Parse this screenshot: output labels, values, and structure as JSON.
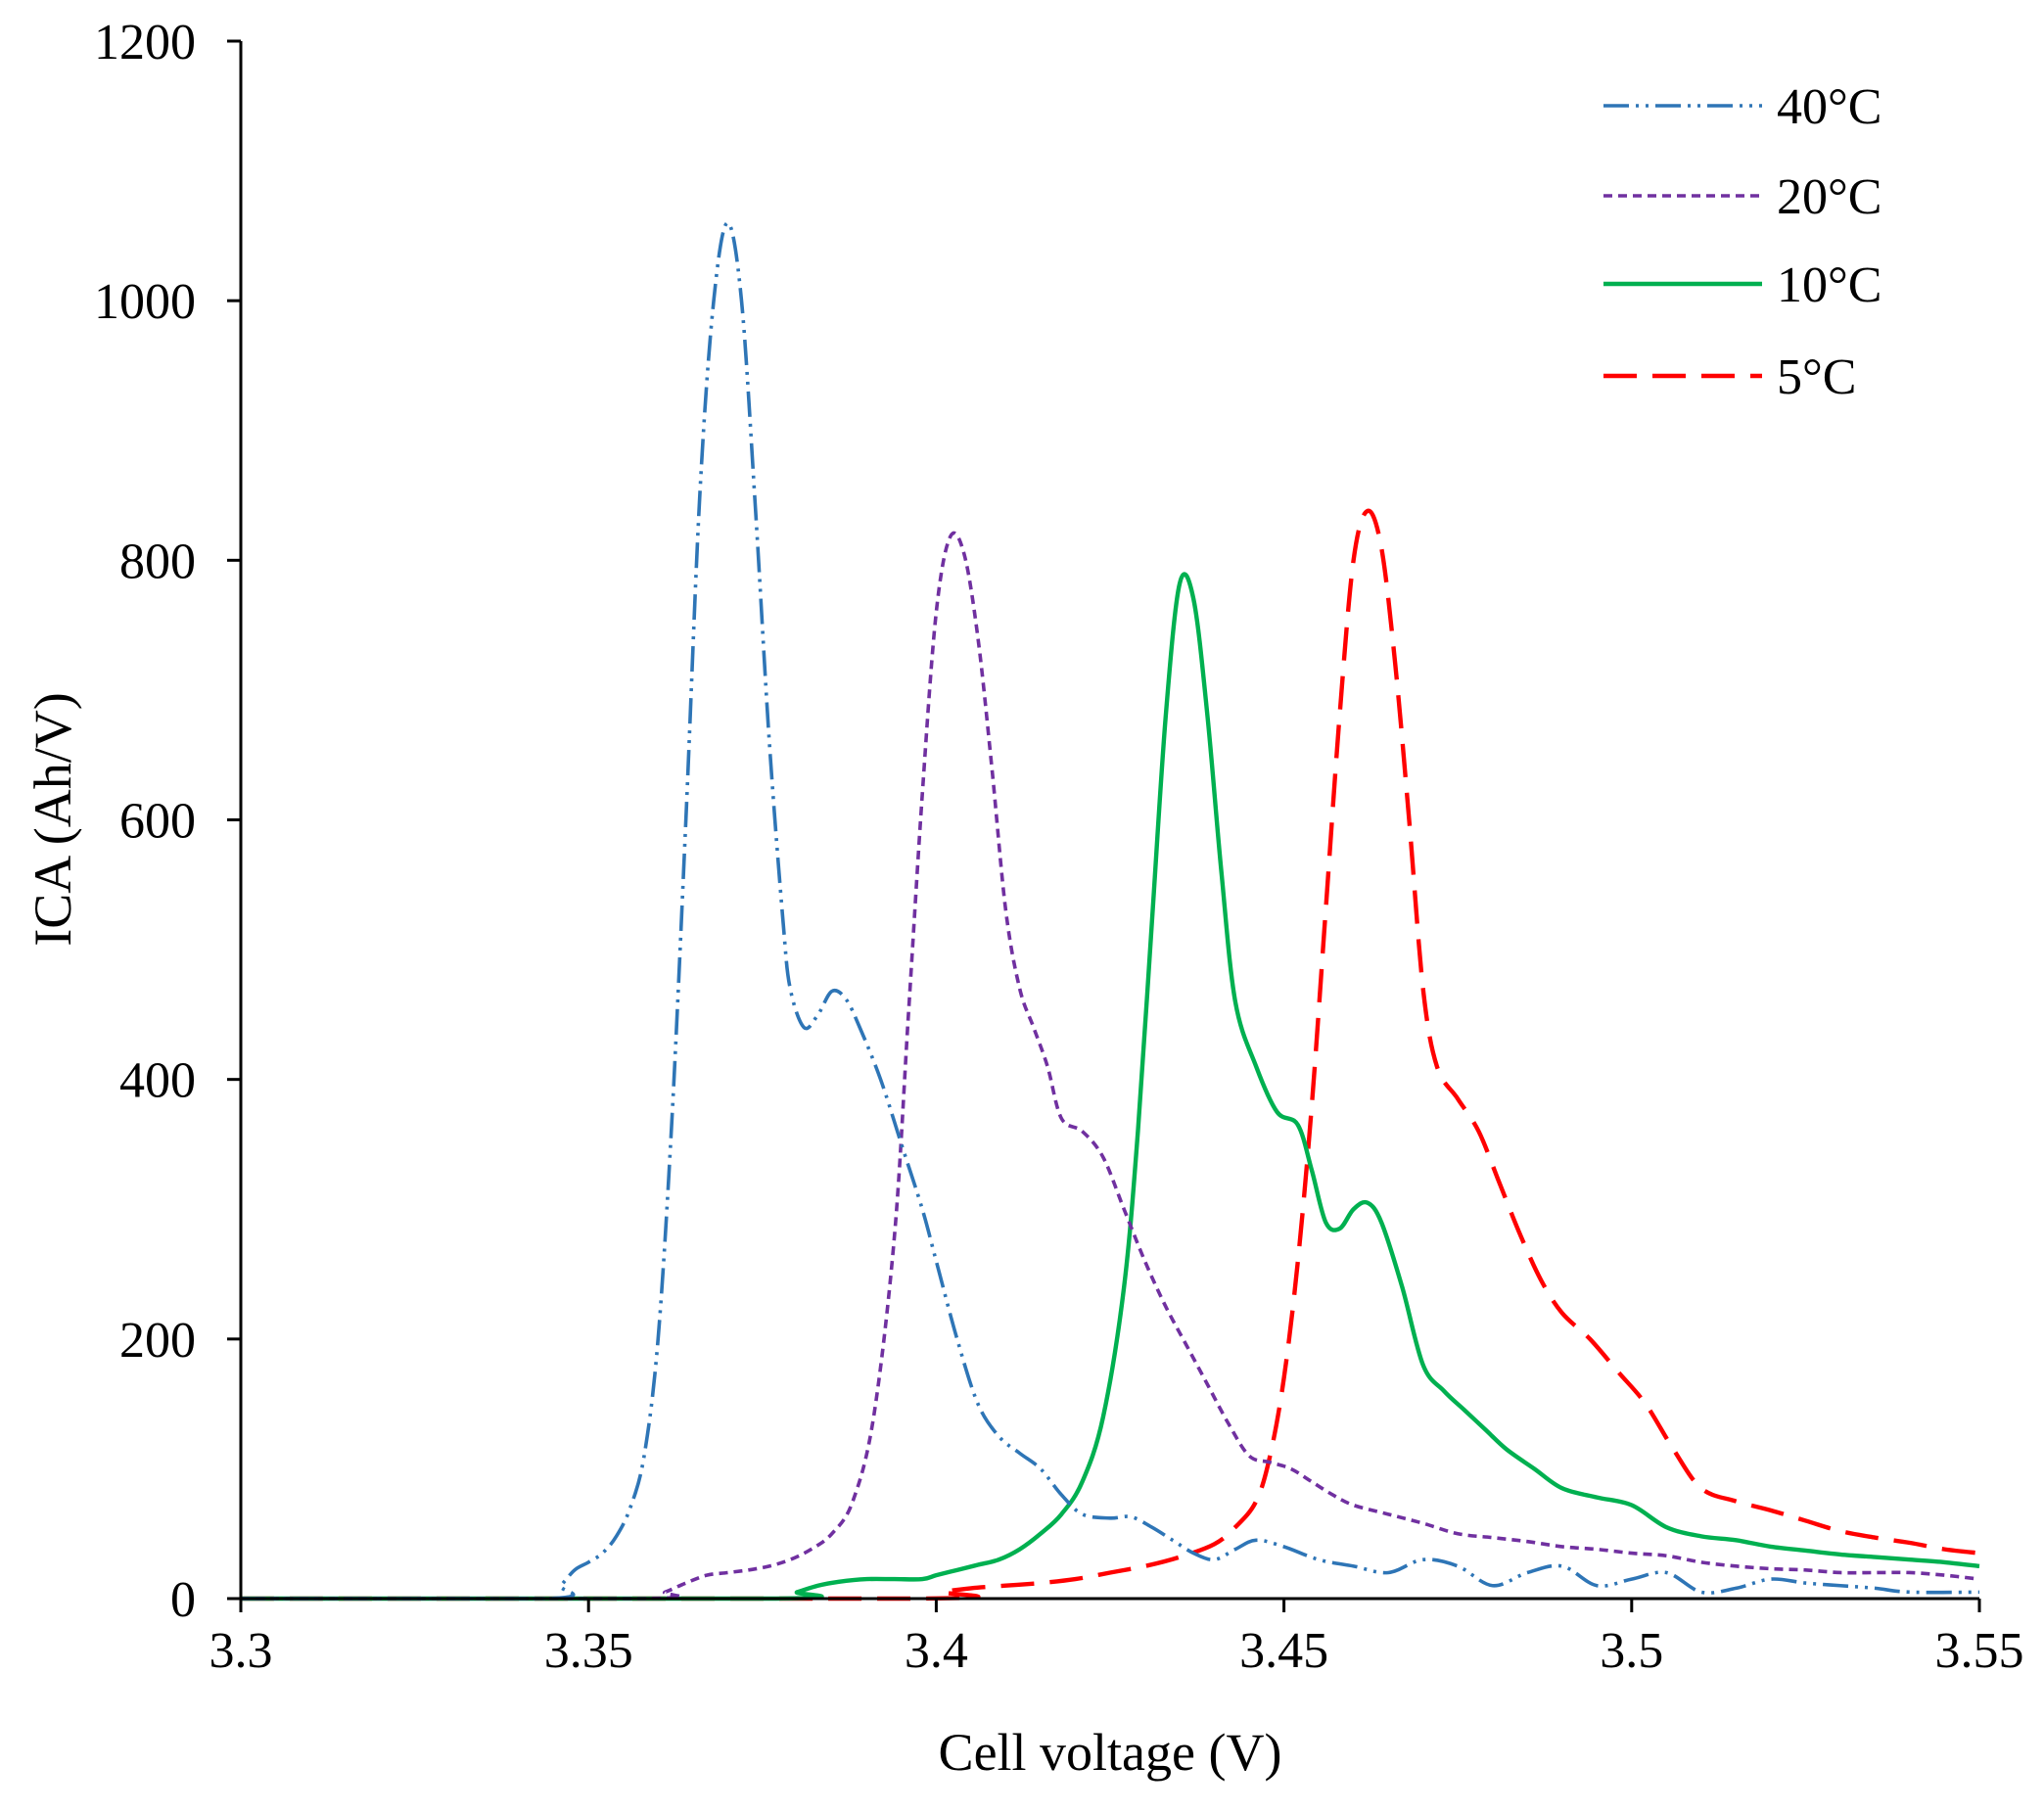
{
  "chart_data": {
    "type": "line",
    "title": "",
    "xlabel": "Cell voltage (V)",
    "ylabel": "ICA (Ah/V)",
    "xlim": [
      3.3,
      3.55
    ],
    "ylim": [
      0,
      1200
    ],
    "x_ticks": [
      3.3,
      3.35,
      3.4,
      3.45,
      3.5,
      3.55
    ],
    "x_tick_labels": [
      "3.3",
      "3.35",
      "3.4",
      "3.45",
      "3.5",
      "3.55"
    ],
    "y_ticks": [
      0,
      200,
      400,
      600,
      800,
      1000,
      1200
    ],
    "y_tick_labels": [
      "0",
      "200",
      "400",
      "600",
      "800",
      "1000",
      "1200"
    ],
    "grid": false,
    "legend_position": "top-right",
    "series": [
      {
        "name": "40°C",
        "color": "#2e75b6",
        "style": "dash-dot-dot",
        "points": [
          [
            3.3,
            0
          ],
          [
            3.344,
            0
          ],
          [
            3.346,
            10
          ],
          [
            3.348,
            22
          ],
          [
            3.35,
            28
          ],
          [
            3.352,
            35
          ],
          [
            3.354,
            48
          ],
          [
            3.356,
            70
          ],
          [
            3.358,
            110
          ],
          [
            3.36,
            200
          ],
          [
            3.362,
            370
          ],
          [
            3.364,
            600
          ],
          [
            3.366,
            850
          ],
          [
            3.368,
            1000
          ],
          [
            3.37,
            1060
          ],
          [
            3.372,
            1000
          ],
          [
            3.374,
            840
          ],
          [
            3.376,
            660
          ],
          [
            3.378,
            520
          ],
          [
            3.379,
            470
          ],
          [
            3.381,
            440
          ],
          [
            3.383,
            450
          ],
          [
            3.385,
            468
          ],
          [
            3.387,
            462
          ],
          [
            3.389,
            440
          ],
          [
            3.392,
            400
          ],
          [
            3.395,
            350
          ],
          [
            3.398,
            300
          ],
          [
            3.4,
            260
          ],
          [
            3.403,
            200
          ],
          [
            3.406,
            150
          ],
          [
            3.409,
            125
          ],
          [
            3.412,
            112
          ],
          [
            3.415,
            100
          ],
          [
            3.418,
            80
          ],
          [
            3.421,
            65
          ],
          [
            3.425,
            62
          ],
          [
            3.428,
            63
          ],
          [
            3.431,
            55
          ],
          [
            3.434,
            45
          ],
          [
            3.437,
            35
          ],
          [
            3.44,
            30
          ],
          [
            3.443,
            38
          ],
          [
            3.446,
            45
          ],
          [
            3.45,
            40
          ],
          [
            3.455,
            30
          ],
          [
            3.46,
            25
          ],
          [
            3.465,
            20
          ],
          [
            3.47,
            30
          ],
          [
            3.475,
            25
          ],
          [
            3.48,
            10
          ],
          [
            3.485,
            20
          ],
          [
            3.49,
            25
          ],
          [
            3.495,
            10
          ],
          [
            3.5,
            15
          ],
          [
            3.505,
            20
          ],
          [
            3.51,
            5
          ],
          [
            3.515,
            8
          ],
          [
            3.52,
            15
          ],
          [
            3.525,
            12
          ],
          [
            3.53,
            10
          ],
          [
            3.535,
            8
          ],
          [
            3.54,
            5
          ],
          [
            3.55,
            5
          ]
        ]
      },
      {
        "name": "20°C",
        "color": "#7030a0",
        "style": "short-dash",
        "points": [
          [
            3.3,
            0
          ],
          [
            3.358,
            0
          ],
          [
            3.361,
            5
          ],
          [
            3.364,
            12
          ],
          [
            3.367,
            18
          ],
          [
            3.37,
            20
          ],
          [
            3.373,
            22
          ],
          [
            3.376,
            25
          ],
          [
            3.379,
            30
          ],
          [
            3.382,
            38
          ],
          [
            3.385,
            50
          ],
          [
            3.388,
            75
          ],
          [
            3.391,
            140
          ],
          [
            3.394,
            280
          ],
          [
            3.396,
            450
          ],
          [
            3.398,
            620
          ],
          [
            3.4,
            760
          ],
          [
            3.402,
            818
          ],
          [
            3.404,
            805
          ],
          [
            3.406,
            740
          ],
          [
            3.408,
            640
          ],
          [
            3.41,
            530
          ],
          [
            3.412,
            470
          ],
          [
            3.414,
            440
          ],
          [
            3.416,
            410
          ],
          [
            3.418,
            370
          ],
          [
            3.421,
            360
          ],
          [
            3.424,
            340
          ],
          [
            3.427,
            300
          ],
          [
            3.43,
            260
          ],
          [
            3.433,
            225
          ],
          [
            3.436,
            195
          ],
          [
            3.439,
            165
          ],
          [
            3.442,
            135
          ],
          [
            3.445,
            110
          ],
          [
            3.448,
            105
          ],
          [
            3.451,
            100
          ],
          [
            3.454,
            90
          ],
          [
            3.457,
            80
          ],
          [
            3.46,
            72
          ],
          [
            3.465,
            65
          ],
          [
            3.47,
            58
          ],
          [
            3.475,
            50
          ],
          [
            3.48,
            47
          ],
          [
            3.485,
            44
          ],
          [
            3.49,
            40
          ],
          [
            3.495,
            38
          ],
          [
            3.5,
            35
          ],
          [
            3.505,
            33
          ],
          [
            3.51,
            28
          ],
          [
            3.515,
            25
          ],
          [
            3.52,
            23
          ],
          [
            3.525,
            22
          ],
          [
            3.53,
            20
          ],
          [
            3.535,
            20
          ],
          [
            3.54,
            20
          ],
          [
            3.545,
            18
          ],
          [
            3.55,
            15
          ]
        ]
      },
      {
        "name": "10°C",
        "color": "#00b050",
        "style": "solid",
        "points": [
          [
            3.3,
            0
          ],
          [
            3.377,
            0
          ],
          [
            3.38,
            5
          ],
          [
            3.383,
            10
          ],
          [
            3.386,
            13
          ],
          [
            3.39,
            15
          ],
          [
            3.394,
            15
          ],
          [
            3.398,
            15
          ],
          [
            3.4,
            18
          ],
          [
            3.403,
            22
          ],
          [
            3.406,
            26
          ],
          [
            3.409,
            30
          ],
          [
            3.412,
            38
          ],
          [
            3.415,
            50
          ],
          [
            3.418,
            65
          ],
          [
            3.421,
            90
          ],
          [
            3.424,
            140
          ],
          [
            3.427,
            240
          ],
          [
            3.429,
            360
          ],
          [
            3.431,
            520
          ],
          [
            3.433,
            680
          ],
          [
            3.435,
            782
          ],
          [
            3.437,
            770
          ],
          [
            3.439,
            680
          ],
          [
            3.441,
            560
          ],
          [
            3.443,
            460
          ],
          [
            3.446,
            410
          ],
          [
            3.449,
            375
          ],
          [
            3.452,
            365
          ],
          [
            3.454,
            330
          ],
          [
            3.456,
            290
          ],
          [
            3.458,
            285
          ],
          [
            3.46,
            300
          ],
          [
            3.462,
            305
          ],
          [
            3.464,
            290
          ],
          [
            3.467,
            240
          ],
          [
            3.47,
            180
          ],
          [
            3.473,
            160
          ],
          [
            3.476,
            145
          ],
          [
            3.479,
            130
          ],
          [
            3.482,
            115
          ],
          [
            3.486,
            100
          ],
          [
            3.49,
            85
          ],
          [
            3.495,
            78
          ],
          [
            3.5,
            72
          ],
          [
            3.505,
            55
          ],
          [
            3.51,
            48
          ],
          [
            3.515,
            45
          ],
          [
            3.52,
            40
          ],
          [
            3.525,
            37
          ],
          [
            3.53,
            34
          ],
          [
            3.535,
            32
          ],
          [
            3.54,
            30
          ],
          [
            3.545,
            28
          ],
          [
            3.55,
            25
          ]
        ]
      },
      {
        "name": "5°C",
        "color": "#ff0000",
        "style": "long-dash",
        "points": [
          [
            3.3,
            0
          ],
          [
            3.398,
            0
          ],
          [
            3.401,
            5
          ],
          [
            3.405,
            8
          ],
          [
            3.41,
            10
          ],
          [
            3.415,
            12
          ],
          [
            3.42,
            15
          ],
          [
            3.425,
            20
          ],
          [
            3.43,
            25
          ],
          [
            3.435,
            32
          ],
          [
            3.44,
            42
          ],
          [
            3.443,
            55
          ],
          [
            3.446,
            75
          ],
          [
            3.448,
            110
          ],
          [
            3.45,
            170
          ],
          [
            3.452,
            260
          ],
          [
            3.454,
            380
          ],
          [
            3.456,
            530
          ],
          [
            3.458,
            680
          ],
          [
            3.46,
            800
          ],
          [
            3.462,
            838
          ],
          [
            3.464,
            810
          ],
          [
            3.466,
            720
          ],
          [
            3.468,
            600
          ],
          [
            3.47,
            470
          ],
          [
            3.472,
            410
          ],
          [
            3.475,
            385
          ],
          [
            3.478,
            360
          ],
          [
            3.481,
            320
          ],
          [
            3.484,
            280
          ],
          [
            3.487,
            245
          ],
          [
            3.49,
            220
          ],
          [
            3.494,
            200
          ],
          [
            3.498,
            175
          ],
          [
            3.502,
            150
          ],
          [
            3.506,
            115
          ],
          [
            3.51,
            85
          ],
          [
            3.515,
            75
          ],
          [
            3.52,
            68
          ],
          [
            3.525,
            60
          ],
          [
            3.53,
            52
          ],
          [
            3.535,
            47
          ],
          [
            3.54,
            43
          ],
          [
            3.545,
            38
          ],
          [
            3.55,
            35
          ]
        ]
      }
    ]
  }
}
